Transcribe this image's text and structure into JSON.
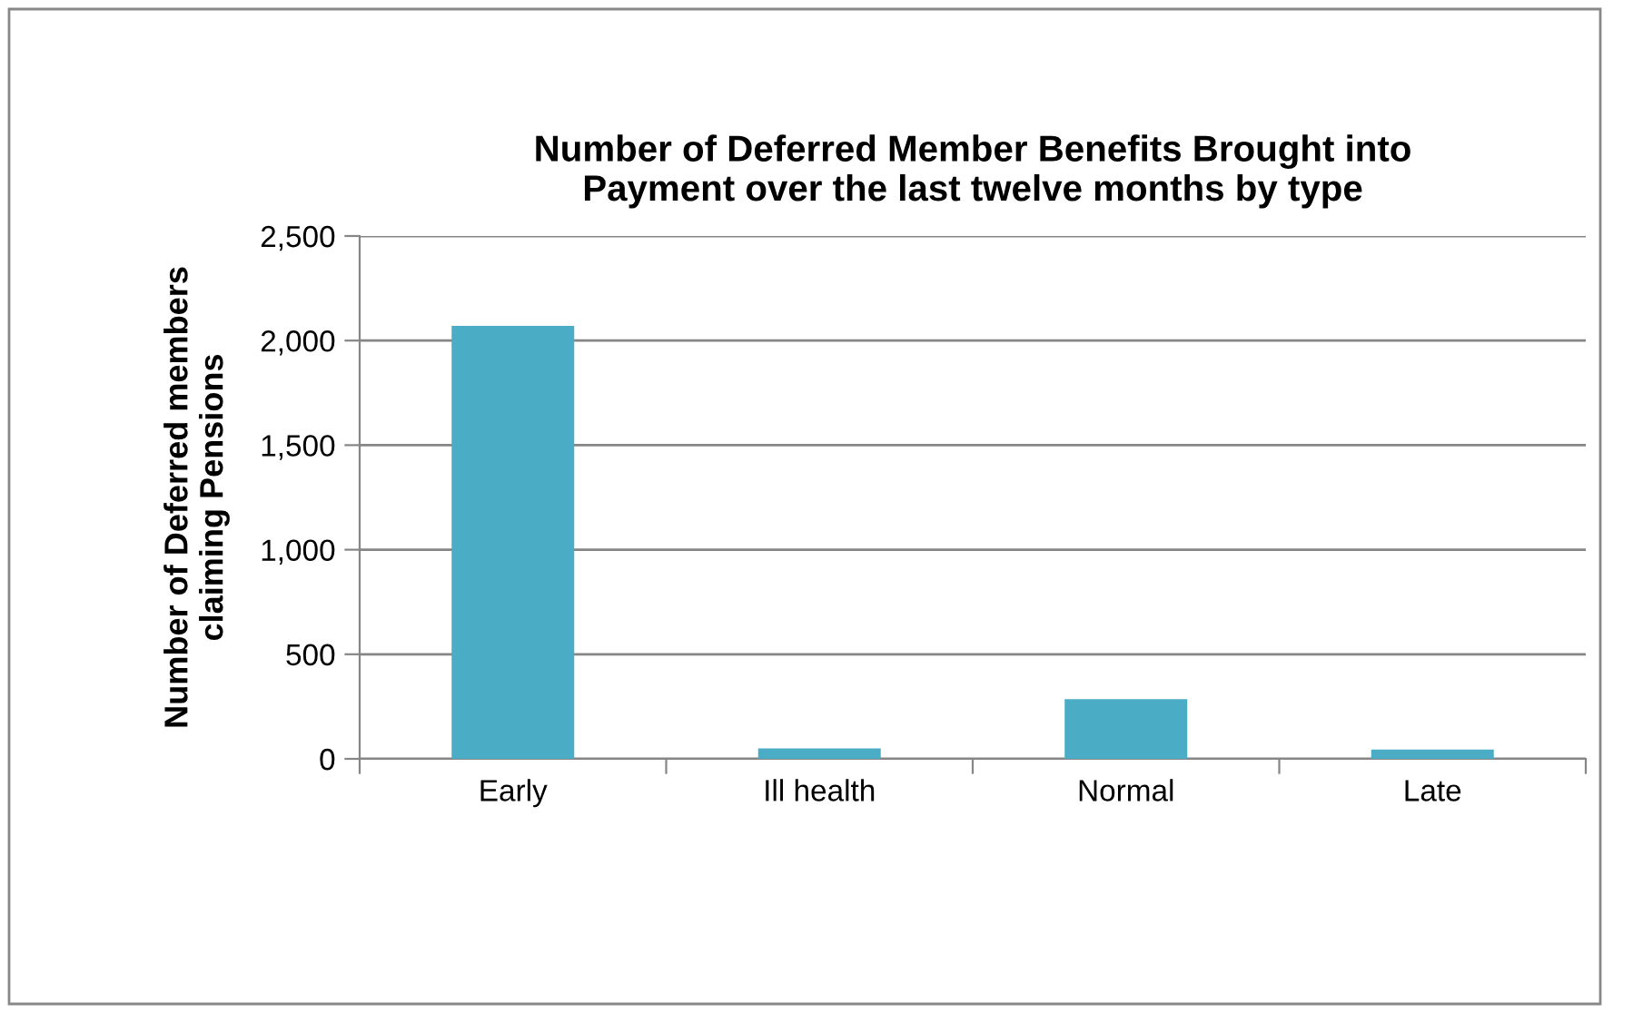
{
  "chart_data": {
    "type": "bar",
    "title": "Number of Deferred Member Benefits Brought into\nPayment over the last twelve months by type",
    "ylabel": "Number of Deferred members\nclaiming Pensions",
    "categories": [
      "Early",
      "Ill health",
      "Normal",
      "Late"
    ],
    "values": [
      2070,
      50,
      285,
      45
    ],
    "color": "#4bacc6",
    "ylim": [
      0,
      2500
    ],
    "yticks": [
      {
        "value": 0,
        "label": "0"
      },
      {
        "value": 500,
        "label": "500"
      },
      {
        "value": 1000,
        "label": "1,000"
      },
      {
        "value": 1500,
        "label": "1,500"
      },
      {
        "value": 2000,
        "label": "2,000"
      },
      {
        "value": 2500,
        "label": "2,500"
      }
    ],
    "grid": "y",
    "legend": false
  }
}
